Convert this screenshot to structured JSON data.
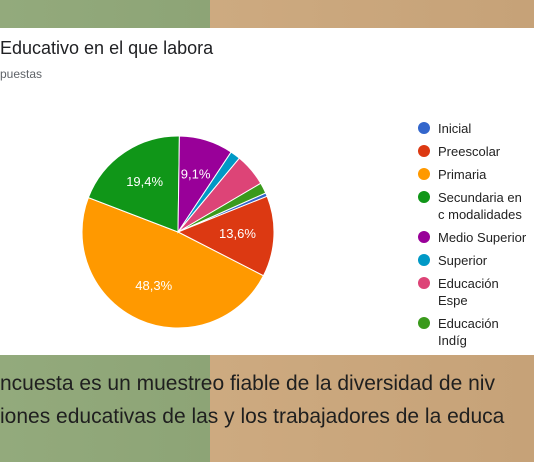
{
  "chart_data": {
    "type": "pie",
    "title": "Educativo en el que labora",
    "subtitle": "puestas",
    "series": [
      {
        "name": "Inicial",
        "color": "#3366cc",
        "values": [
          0.6
        ]
      },
      {
        "name": "Preescolar",
        "color": "#dc3912",
        "values": [
          13.6
        ]
      },
      {
        "name": "Primaria",
        "color": "#ff9900",
        "values": [
          48.3
        ]
      },
      {
        "name": "Secundaria en c modalidades",
        "color": "#109618",
        "values": [
          19.4
        ]
      },
      {
        "name": "Medio Superior",
        "color": "#990099",
        "values": [
          9.1
        ]
      },
      {
        "name": "Superior",
        "color": "#0099c6",
        "values": [
          1.7
        ]
      },
      {
        "name": "Educación Espe",
        "color": "#dd4477",
        "values": [
          5.5
        ]
      },
      {
        "name": "Educación Indíg",
        "color": "#3a9a1c",
        "values": [
          1.8
        ]
      }
    ],
    "value_labels": [
      null,
      "13,6%",
      "48,3%",
      "19,4%",
      "9,1%",
      null,
      null,
      null
    ]
  },
  "caption": [
    "ncuesta es un muestreo fiable de la diversidad de niv",
    "iones educativas de las y los trabajadores de la educa"
  ]
}
